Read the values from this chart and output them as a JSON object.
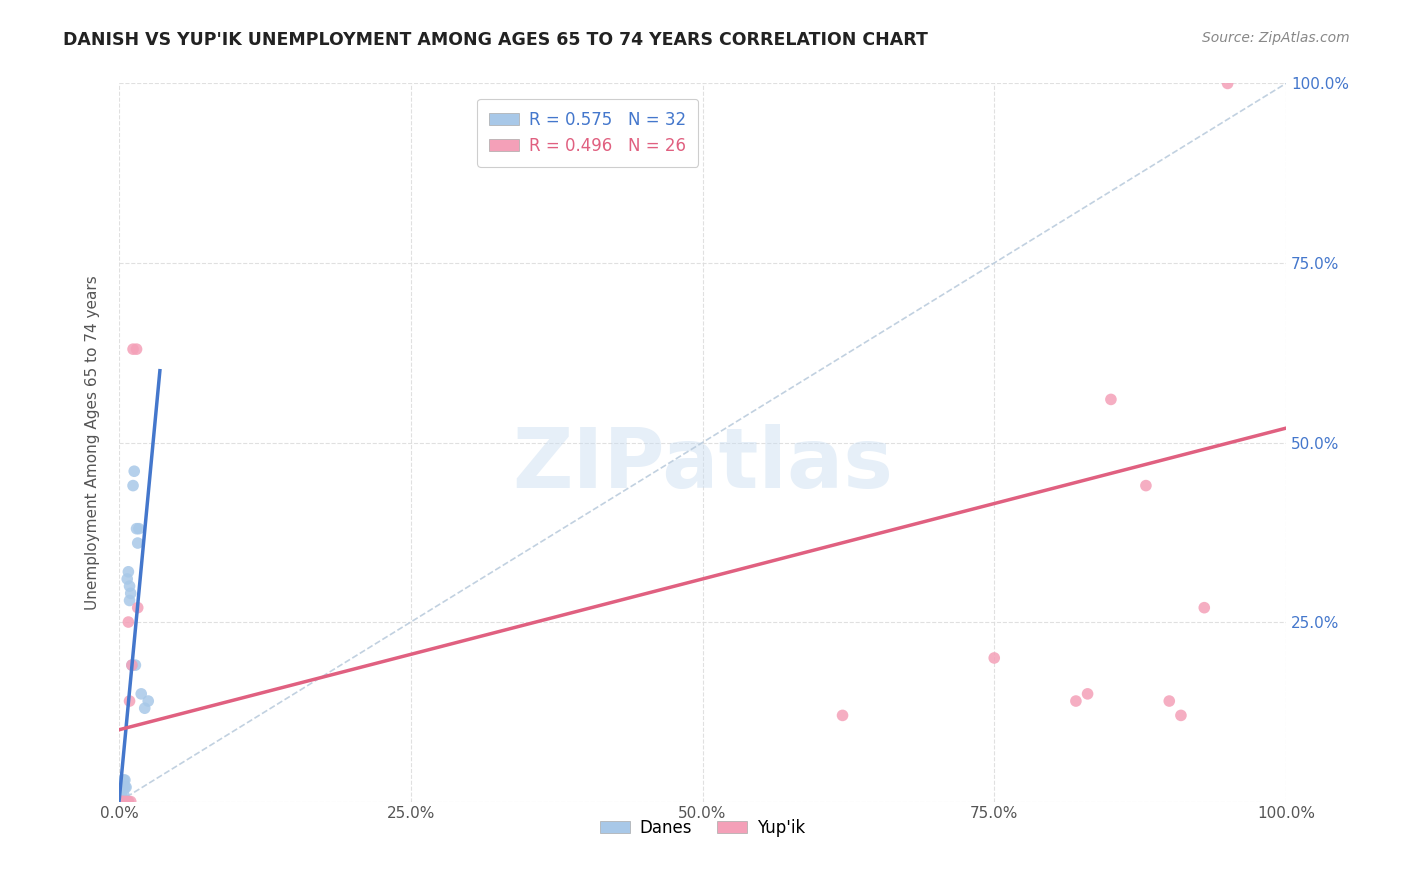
{
  "title": "DANISH VS YUP'IK UNEMPLOYMENT AMONG AGES 65 TO 74 YEARS CORRELATION CHART",
  "source": "Source: ZipAtlas.com",
  "ylabel": "Unemployment Among Ages 65 to 74 years",
  "xlim": [
    0,
    1
  ],
  "ylim": [
    0,
    1
  ],
  "xticks": [
    0,
    0.25,
    0.5,
    0.75,
    1.0
  ],
  "xticklabels": [
    "0.0%",
    "25.0%",
    "50.0%",
    "75.0%",
    "100.0%"
  ],
  "yticks": [
    0.0,
    0.25,
    0.5,
    0.75,
    1.0
  ],
  "yticklabels_left": [
    "",
    "",
    "",
    "",
    ""
  ],
  "yticklabels_right": [
    "",
    "25.0%",
    "50.0%",
    "75.0%",
    "100.0%"
  ],
  "danes_color": "#A8C8E8",
  "yupik_color": "#F4A0B8",
  "danes_line_color": "#4477CC",
  "yupik_line_color": "#E06080",
  "diagonal_color": "#BBCCDD",
  "watermark": "ZIPatlas",
  "legend_r_danes": "R = 0.575",
  "legend_n_danes": "N = 32",
  "legend_r_yupik": "R = 0.496",
  "legend_n_yupik": "N = 26",
  "danes_line_x": [
    0.0,
    0.035
  ],
  "danes_line_y": [
    0.0,
    0.6
  ],
  "yupik_line_x": [
    0.0,
    1.0
  ],
  "yupik_line_y": [
    0.1,
    0.52
  ],
  "danes_x": [
    0.001,
    0.001,
    0.002,
    0.002,
    0.002,
    0.003,
    0.003,
    0.003,
    0.004,
    0.004,
    0.004,
    0.005,
    0.005,
    0.005,
    0.006,
    0.006,
    0.007,
    0.008,
    0.008,
    0.009,
    0.009,
    0.01,
    0.011,
    0.012,
    0.013,
    0.014,
    0.015,
    0.016,
    0.017,
    0.019,
    0.022,
    0.025
  ],
  "danes_y": [
    0.0,
    0.0,
    0.0,
    0.0,
    0.01,
    0.0,
    0.0,
    0.02,
    0.0,
    0.01,
    0.03,
    0.0,
    0.02,
    0.03,
    0.0,
    0.02,
    0.31,
    0.0,
    0.32,
    0.28,
    0.3,
    0.29,
    0.19,
    0.44,
    0.46,
    0.19,
    0.38,
    0.36,
    0.38,
    0.15,
    0.13,
    0.14
  ],
  "yupik_x": [
    0.001,
    0.002,
    0.003,
    0.003,
    0.004,
    0.005,
    0.006,
    0.007,
    0.008,
    0.008,
    0.009,
    0.01,
    0.011,
    0.012,
    0.015,
    0.016,
    0.62,
    0.75,
    0.82,
    0.83,
    0.85,
    0.88,
    0.9,
    0.91,
    0.93,
    0.95
  ],
  "yupik_y": [
    0.0,
    0.0,
    0.0,
    0.0,
    0.0,
    0.0,
    0.0,
    0.0,
    0.0,
    0.25,
    0.14,
    0.0,
    0.19,
    0.63,
    0.63,
    0.27,
    0.12,
    0.2,
    0.14,
    0.15,
    0.56,
    0.44,
    0.14,
    0.12,
    0.27,
    1.0
  ],
  "background_color": "#FFFFFF",
  "grid_color": "#DDDDDD",
  "marker_size": 70
}
